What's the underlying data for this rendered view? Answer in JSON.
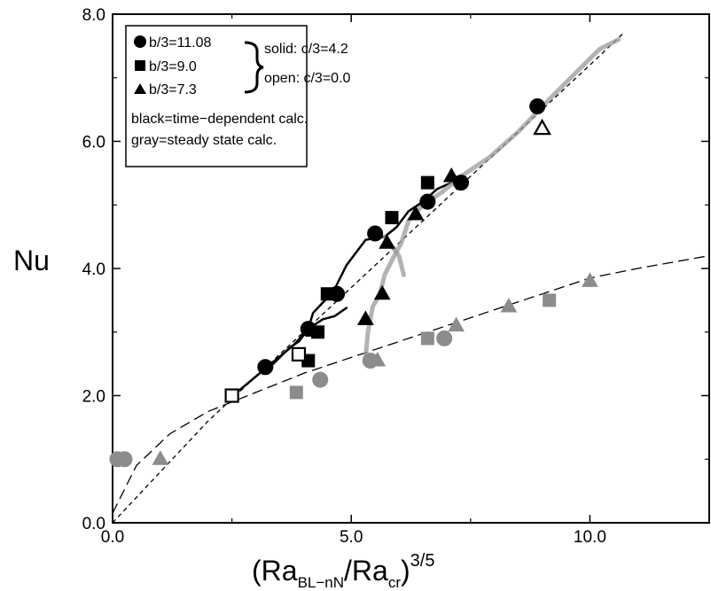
{
  "chart_data": {
    "type": "scatter",
    "xlabel": {
      "base": "(Ra",
      "sub1": "BL−nN",
      "mid": "/Ra",
      "sub2": "cr",
      "close": ")",
      "sup": "3/5"
    },
    "ylabel": "Nu",
    "xlim": [
      0,
      12.5
    ],
    "ylim": [
      0,
      8
    ],
    "x_ticks": [
      0,
      5,
      10
    ],
    "x_tick_labels": [
      "0.0",
      "5.0",
      "10.0"
    ],
    "y_ticks": [
      0,
      2,
      4,
      6,
      8
    ],
    "y_tick_labels": [
      "0.0",
      "2.0",
      "4.0",
      "6.0",
      "8.0"
    ],
    "grid": false,
    "legend_position": "top-left",
    "colors": {
      "black": "#000000",
      "gray": "#8c8c8c",
      "gray_trace": "#9a9a9a"
    },
    "legend": {
      "shapes": [
        {
          "shape": "circle",
          "label": "b/3=11.08"
        },
        {
          "shape": "square",
          "label": "b/3=9.0"
        },
        {
          "shape": "triangle",
          "label": "b/3=7.3"
        }
      ],
      "fill_notes": [
        "solid: c/3=4.2",
        "open: c/3=0.0"
      ],
      "color_notes": [
        "black=time−dependent calc.",
        "gray=steady state calc."
      ]
    },
    "series": [
      {
        "shape": "circle",
        "color": "black",
        "fill": "solid",
        "points": [
          [
            3.2,
            2.45
          ],
          [
            4.1,
            3.05
          ],
          [
            4.7,
            3.6
          ],
          [
            5.5,
            4.55
          ],
          [
            6.6,
            5.05
          ],
          [
            7.3,
            5.35
          ],
          [
            8.9,
            6.55
          ]
        ]
      },
      {
        "shape": "square",
        "color": "black",
        "fill": "solid",
        "points": [
          [
            4.1,
            2.55
          ],
          [
            4.3,
            3.0
          ],
          [
            4.5,
            3.6
          ],
          [
            5.85,
            4.8
          ],
          [
            6.6,
            5.35
          ]
        ]
      },
      {
        "shape": "triangle",
        "color": "black",
        "fill": "solid",
        "points": [
          [
            5.3,
            3.2
          ],
          [
            5.65,
            3.6
          ],
          [
            5.75,
            4.4
          ],
          [
            6.35,
            4.85
          ],
          [
            7.1,
            5.45
          ]
        ]
      },
      {
        "shape": "square",
        "color": "black",
        "fill": "open",
        "points": [
          [
            2.5,
            2.0
          ],
          [
            3.9,
            2.65
          ]
        ]
      },
      {
        "shape": "triangle",
        "color": "black",
        "fill": "open",
        "points": [
          [
            9.0,
            6.2
          ]
        ]
      },
      {
        "shape": "circle",
        "color": "gray",
        "fill": "solid",
        "points": [
          [
            0.1,
            1.0
          ],
          [
            0.25,
            1.0
          ],
          [
            4.35,
            2.25
          ],
          [
            5.4,
            2.55
          ],
          [
            6.95,
            2.9
          ]
        ]
      },
      {
        "shape": "square",
        "color": "gray",
        "fill": "solid",
        "points": [
          [
            3.85,
            2.05
          ],
          [
            6.6,
            2.9
          ],
          [
            9.15,
            3.5
          ]
        ]
      },
      {
        "shape": "triangle",
        "color": "gray",
        "fill": "solid",
        "points": [
          [
            1.0,
            1.0
          ],
          [
            5.55,
            2.55
          ],
          [
            7.2,
            3.1
          ],
          [
            8.3,
            3.4
          ],
          [
            10.0,
            3.8
          ]
        ]
      }
    ],
    "fit_curves": [
      {
        "style": "short-dash",
        "points": [
          [
            0,
            0
          ],
          [
            2,
            1.6
          ],
          [
            4,
            3.0
          ],
          [
            6,
            4.4
          ],
          [
            8,
            5.8
          ],
          [
            10,
            7.2
          ],
          [
            10.7,
            7.7
          ]
        ]
      },
      {
        "style": "long-dash",
        "points": [
          [
            0,
            0.15
          ],
          [
            0.5,
            0.9
          ],
          [
            1.2,
            1.4
          ],
          [
            2,
            1.75
          ],
          [
            3,
            2.05
          ],
          [
            4,
            2.35
          ],
          [
            5,
            2.6
          ],
          [
            6,
            2.85
          ],
          [
            7,
            3.1
          ],
          [
            8,
            3.35
          ],
          [
            9,
            3.6
          ],
          [
            10,
            3.85
          ],
          [
            11,
            4.0
          ],
          [
            12.5,
            4.2
          ]
        ]
      }
    ],
    "traces": [
      {
        "color": "black",
        "points": [
          [
            2.6,
            2.05
          ],
          [
            3.0,
            2.3
          ],
          [
            3.4,
            2.55
          ],
          [
            3.8,
            2.8
          ],
          [
            4.1,
            3.05
          ],
          [
            4.4,
            3.2
          ],
          [
            4.65,
            3.25
          ],
          [
            4.9,
            3.38
          ]
        ]
      },
      {
        "color": "black",
        "points": [
          [
            3.3,
            2.45
          ],
          [
            3.7,
            2.75
          ],
          [
            3.9,
            2.85
          ],
          [
            4.1,
            3.05
          ],
          [
            4.2,
            3.3
          ],
          [
            4.45,
            3.5
          ],
          [
            4.6,
            3.6
          ],
          [
            4.9,
            4.05
          ],
          [
            5.3,
            4.45
          ],
          [
            5.7,
            4.5
          ],
          [
            5.95,
            4.65
          ],
          [
            6.2,
            4.9
          ],
          [
            6.5,
            5.05
          ],
          [
            6.8,
            5.25
          ],
          [
            7.1,
            5.35
          ]
        ]
      },
      {
        "color": "gray",
        "points": [
          [
            5.3,
            2.6
          ],
          [
            5.35,
            3.0
          ],
          [
            5.45,
            3.4
          ],
          [
            5.6,
            3.6
          ],
          [
            5.7,
            3.9
          ],
          [
            5.9,
            4.2
          ],
          [
            6.05,
            4.4
          ],
          [
            6.2,
            4.75
          ],
          [
            6.5,
            5.0
          ],
          [
            6.9,
            5.2
          ],
          [
            7.3,
            5.45
          ],
          [
            7.9,
            5.75
          ],
          [
            8.5,
            6.15
          ],
          [
            9.2,
            6.7
          ],
          [
            9.8,
            7.15
          ],
          [
            10.2,
            7.45
          ],
          [
            10.6,
            7.6
          ]
        ]
      },
      {
        "color": "gray",
        "points": [
          [
            5.7,
            4.5
          ],
          [
            6.0,
            4.2
          ],
          [
            6.1,
            3.9
          ]
        ]
      }
    ]
  }
}
